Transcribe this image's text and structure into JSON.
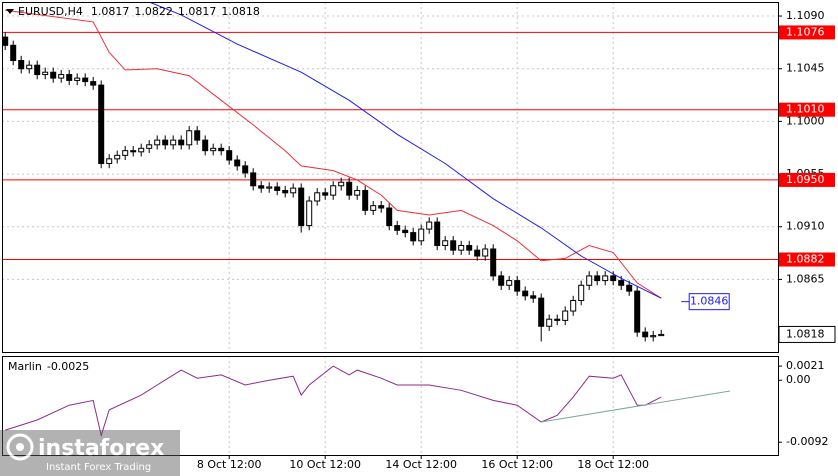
{
  "chart_data": {
    "type": "candlestick",
    "title": "EURUSD,H4",
    "categories": [
      null,
      null,
      null,
      null,
      null,
      null,
      null,
      null,
      null,
      null,
      null,
      null,
      null,
      null,
      null,
      null,
      null,
      null,
      null,
      null,
      null,
      null,
      null,
      null,
      null,
      null,
      null,
      null,
      null,
      null,
      null,
      null,
      null,
      null,
      null,
      null,
      null,
      null,
      null,
      null,
      null,
      null,
      null,
      null,
      null,
      null,
      null,
      null,
      null,
      null,
      null,
      null,
      null,
      null,
      null,
      null,
      null,
      null,
      null,
      null,
      null,
      null,
      null,
      null,
      null,
      null,
      null,
      null,
      null,
      null,
      null,
      null,
      null,
      null,
      null,
      null,
      null,
      null,
      null,
      null,
      null,
      null,
      null
    ],
    "open": [
      1.1072,
      1.1065,
      1.1052,
      1.1045,
      1.1048,
      1.104,
      1.1042,
      1.1037,
      1.104,
      1.1035,
      1.1037,
      1.1034,
      1.1031,
      1.0964,
      1.0968,
      1.0971,
      1.0975,
      1.0974,
      1.0977,
      1.098,
      1.0984,
      1.098,
      1.0984,
      1.098,
      1.0992,
      1.0984,
      1.0975,
      1.0977,
      1.0975,
      1.0967,
      1.0962,
      1.0956,
      1.0945,
      1.0943,
      1.0944,
      1.0941,
      1.0939,
      1.0943,
      1.0911,
      1.0932,
      1.0939,
      1.0937,
      1.0945,
      1.0948,
      1.0937,
      1.0941,
      1.0924,
      1.0928,
      1.0926,
      1.0911,
      1.0907,
      1.0905,
      1.0898,
      1.0908,
      1.0914,
      1.0894,
      1.0898,
      1.089,
      1.0894,
      1.089,
      1.0885,
      1.0891,
      1.0868,
      1.086,
      1.0864,
      1.0855,
      1.0851,
      1.0849,
      1.0825,
      1.0831,
      1.083,
      1.0838,
      1.0847,
      1.086,
      1.0868,
      1.0864,
      1.0868,
      1.0864,
      1.086,
      1.0855,
      1.082,
      1.0816,
      1.0817
    ],
    "high": [
      1.1076,
      1.1069,
      1.1056,
      1.1052,
      1.1052,
      1.1046,
      1.1046,
      1.1044,
      1.1044,
      1.1041,
      1.1041,
      1.1038,
      1.1035,
      1.0972,
      1.0975,
      1.0979,
      1.0979,
      1.0981,
      1.0984,
      1.0988,
      1.0988,
      1.0988,
      1.0988,
      1.0996,
      1.0996,
      1.0988,
      1.0981,
      1.0981,
      1.0979,
      1.0971,
      1.0966,
      1.096,
      1.0949,
      1.0948,
      1.0948,
      1.0945,
      1.0947,
      1.0947,
      1.0936,
      1.0943,
      1.0943,
      1.0949,
      1.0952,
      1.0952,
      1.0945,
      1.0945,
      1.0932,
      1.0932,
      1.093,
      1.0915,
      1.0911,
      1.0909,
      1.0912,
      1.0918,
      1.0918,
      1.0902,
      1.0902,
      1.0898,
      1.0898,
      1.0894,
      1.0895,
      1.0895,
      1.0872,
      1.0868,
      1.0868,
      1.0859,
      1.0855,
      1.0853,
      1.0835,
      1.0835,
      1.0842,
      1.0851,
      1.0864,
      1.0872,
      1.0872,
      1.0872,
      1.0872,
      1.0868,
      1.0864,
      1.0859,
      1.0824,
      1.0821,
      1.0822
    ],
    "low": [
      1.1061,
      1.1048,
      1.1041,
      1.1041,
      1.1036,
      1.1036,
      1.1033,
      1.1033,
      1.1031,
      1.1031,
      1.103,
      1.1027,
      1.096,
      1.096,
      1.0964,
      1.0967,
      1.097,
      1.097,
      1.0973,
      1.0976,
      1.0976,
      1.0976,
      1.0976,
      1.0976,
      1.098,
      1.0971,
      1.0971,
      1.0971,
      1.0963,
      1.0958,
      1.0952,
      1.0941,
      1.0939,
      1.0939,
      1.0937,
      1.0935,
      1.0935,
      1.0905,
      1.0907,
      1.0928,
      1.0933,
      1.0933,
      1.0941,
      1.0933,
      1.0933,
      1.092,
      1.092,
      1.0922,
      1.0907,
      1.0903,
      1.0901,
      1.0894,
      1.0894,
      1.0904,
      1.089,
      1.089,
      1.0886,
      1.0886,
      1.0886,
      1.0881,
      1.0881,
      1.0864,
      1.0856,
      1.0856,
      1.0851,
      1.0847,
      1.0845,
      1.0812,
      1.0821,
      1.0826,
      1.0826,
      1.0834,
      1.0843,
      1.0856,
      1.086,
      1.086,
      1.086,
      1.0856,
      1.0851,
      1.0816,
      1.0812,
      1.0812,
      1.0817
    ],
    "close": [
      1.1065,
      1.1052,
      1.1045,
      1.1048,
      1.104,
      1.1042,
      1.1037,
      1.104,
      1.1035,
      1.1037,
      1.1034,
      1.1031,
      1.0964,
      1.0968,
      1.0971,
      1.0975,
      1.0974,
      1.0977,
      1.098,
      1.0984,
      1.098,
      1.0984,
      1.098,
      1.0992,
      1.0984,
      1.0975,
      1.0977,
      1.0975,
      1.0967,
      1.0962,
      1.0956,
      1.0945,
      1.0943,
      1.0944,
      1.0941,
      1.0939,
      1.0943,
      1.0911,
      1.0932,
      1.0939,
      1.0937,
      1.0945,
      1.0948,
      1.0937,
      1.0941,
      1.0924,
      1.0928,
      1.0926,
      1.0911,
      1.0907,
      1.0905,
      1.0898,
      1.0908,
      1.0914,
      1.0894,
      1.0898,
      1.089,
      1.0894,
      1.089,
      1.0885,
      1.0891,
      1.0868,
      1.086,
      1.0864,
      1.0855,
      1.0851,
      1.0849,
      1.0825,
      1.0831,
      1.083,
      1.0838,
      1.0847,
      1.086,
      1.0868,
      1.0864,
      1.0868,
      1.0864,
      1.086,
      1.0855,
      1.082,
      1.0816,
      1.0817,
      1.0818
    ],
    "moving_averages": [
      {
        "color": "#e8303a",
        "x": [
          0,
          11,
          13,
          15,
          19,
          23,
          27,
          31,
          35,
          37,
          41,
          44,
          47,
          49,
          53,
          57,
          61,
          64,
          67,
          70,
          73,
          76,
          79,
          82
        ],
        "values": [
          1.1095,
          1.1085,
          1.1059,
          1.1044,
          1.1045,
          1.1039,
          1.1018,
          1.0997,
          1.0975,
          1.0962,
          1.0958,
          1.095,
          1.0937,
          1.0924,
          1.092,
          1.0924,
          1.0911,
          1.0898,
          1.0881,
          1.0883,
          1.0894,
          1.0888,
          1.0862,
          1.0849
        ]
      },
      {
        "color": "#1e1ee6",
        "x": [
          18,
          22,
          29,
          37,
          43,
          49,
          55,
          61,
          67,
          72,
          77,
          82
        ],
        "values": [
          1.1102,
          1.1091,
          1.1066,
          1.1042,
          1.1018,
          1.0989,
          1.0964,
          1.0934,
          1.0909,
          1.0885,
          1.0866,
          1.0849
        ]
      }
    ],
    "levels": [
      {
        "value": 1.1076,
        "label": "1.1076"
      },
      {
        "value": 1.101,
        "label": "1.1010"
      },
      {
        "value": 1.095,
        "label": "1.0950"
      },
      {
        "value": 1.0882,
        "label": "1.0882"
      }
    ],
    "level_color": "#ff0000",
    "price_annotation": {
      "value": 1.0846,
      "label": "1.0846",
      "color": "#1e1ee6"
    },
    "xlim": [
      -0.4,
      96.6
    ],
    "ylim": [
      1.0803,
      1.1102
    ],
    "yticks": [
      {
        "value": 1.109,
        "label": "1.1090"
      },
      {
        "value": 1.1045,
        "label": "1.1045"
      },
      {
        "value": 1.1,
        "label": "1.1000"
      },
      {
        "value": 1.0955,
        "label": "1.0955"
      },
      {
        "value": 1.091,
        "label": "1.0910"
      },
      {
        "value": 1.0865,
        "label": "1.0865"
      }
    ],
    "xticks": [
      {
        "value": 28,
        "label": "8 Oct 12:00"
      },
      {
        "value": 40,
        "label": "10 Oct 12:00"
      },
      {
        "value": 52,
        "label": "14 Oct 12:00"
      },
      {
        "value": 64,
        "label": "16 Oct 12:00"
      },
      {
        "value": 76,
        "label": "18 Oct 12:00"
      }
    ],
    "grid": true,
    "indicator": {
      "name": "Marlin",
      "value": -0.0025,
      "color": "#8e2a8e",
      "x": [
        0,
        4,
        8,
        11,
        12,
        13,
        17,
        19,
        22,
        24,
        27,
        30,
        33,
        36,
        37,
        38,
        41,
        43,
        44,
        47,
        49,
        53,
        57,
        61,
        64,
        67,
        69,
        71,
        73,
        76,
        77,
        79,
        80,
        82
      ],
      "values": [
        -0.0074,
        -0.0059,
        -0.0037,
        -0.003,
        -0.0082,
        -0.0044,
        -0.0022,
        -0.0007,
        0.0015,
        0.0003,
        0.0008,
        -0.0007,
        0.0,
        0.0006,
        -0.0022,
        -0.0007,
        0.0021,
        0.0008,
        0.0015,
        0.0003,
        -0.0007,
        -0.0007,
        -0.0015,
        -0.003,
        -0.0037,
        -0.0062,
        -0.0052,
        -0.0025,
        0.0006,
        0.0003,
        0.0008,
        -0.0037,
        -0.0037,
        -0.0025
      ],
      "trendline": {
        "color": "#7fa89c",
        "x": [
          67,
          90.6
        ],
        "values": [
          -0.0062,
          -0.0016
        ]
      },
      "ylim": [
        -0.0111,
        0.0036
      ],
      "yticks": [
        {
          "value": 0.0021,
          "label": "0.0021"
        },
        {
          "value": 0,
          "label": "0.00"
        },
        {
          "value": -0.0092,
          "label": "-0.0092"
        }
      ]
    },
    "watermark": {
      "brand": "instaforex",
      "tagline": "Instant Forex Trading"
    }
  }
}
